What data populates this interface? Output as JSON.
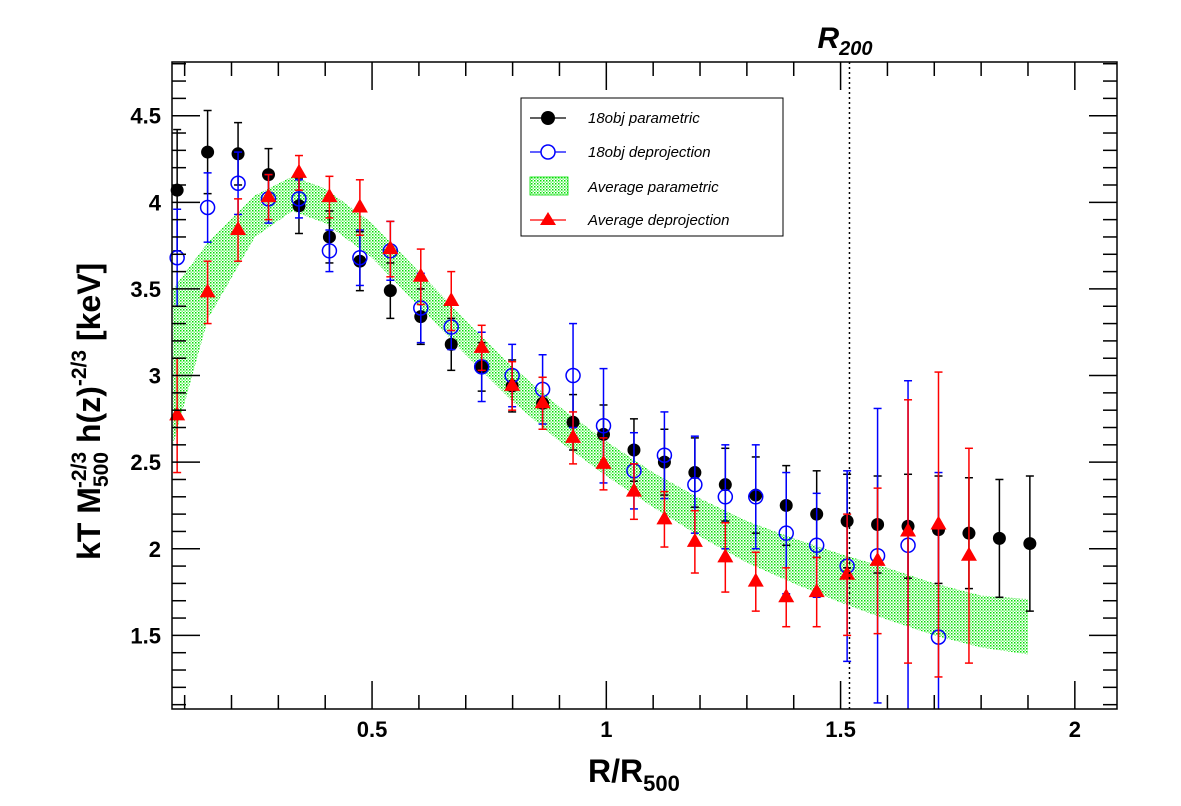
{
  "chart_data": {
    "type": "scatter",
    "title": "",
    "xlabel": {
      "main": "R/R",
      "sub": "500"
    },
    "ylabel": {
      "part1": "kT M",
      "sub1": "500",
      "sup1": "-2/3",
      "part2": " h(z)",
      "sup2": "-2/3",
      "part3": " [keV]"
    },
    "xlim": [
      0.073,
      2.09
    ],
    "ylim": [
      1.075,
      4.81
    ],
    "x_ticks": [
      "0.5",
      "1",
      "1.5",
      "2"
    ],
    "x_tick_values": [
      0.5,
      1,
      1.5,
      2
    ],
    "y_ticks": [
      "1.5",
      "2",
      "2.5",
      "3",
      "3.5",
      "4",
      "4.5"
    ],
    "y_tick_values": [
      1.5,
      2,
      2.5,
      3,
      3.5,
      4,
      4.5
    ],
    "grid": false,
    "legend_position": "top-center",
    "annotation": {
      "label": "R",
      "sub": "200",
      "x": 1.519
    },
    "colors": {
      "parametric": "#000000",
      "deprojection": "#0000ff",
      "band": "#00ee00",
      "avg_deprojection": "#ff0000"
    },
    "series": [
      {
        "name": "18obj parametric",
        "marker": "filled-circle",
        "x": [
          0.084,
          0.149,
          0.214,
          0.279,
          0.344,
          0.409,
          0.474,
          0.539,
          0.604,
          0.669,
          0.734,
          0.799,
          0.864,
          0.929,
          0.994,
          1.059,
          1.124,
          1.189,
          1.254,
          1.319,
          1.384,
          1.449,
          1.514,
          1.579,
          1.644,
          1.709,
          1.774,
          1.839,
          1.904
        ],
        "y": [
          4.07,
          4.29,
          4.28,
          4.16,
          3.98,
          3.8,
          3.66,
          3.49,
          3.34,
          3.18,
          3.05,
          2.94,
          2.84,
          2.73,
          2.66,
          2.57,
          2.5,
          2.44,
          2.37,
          2.31,
          2.25,
          2.2,
          2.16,
          2.14,
          2.13,
          2.11,
          2.09,
          2.06,
          2.03
        ],
        "yerr": [
          0.35,
          0.24,
          0.18,
          0.15,
          0.16,
          0.15,
          0.17,
          0.16,
          0.16,
          0.15,
          0.14,
          0.15,
          0.15,
          0.16,
          0.17,
          0.18,
          0.19,
          0.2,
          0.21,
          0.22,
          0.23,
          0.25,
          0.27,
          0.28,
          0.3,
          0.31,
          0.32,
          0.34,
          0.39
        ]
      },
      {
        "name": "18obj deprojection",
        "marker": "open-circle",
        "x": [
          0.084,
          0.149,
          0.214,
          0.279,
          0.344,
          0.409,
          0.474,
          0.539,
          0.604,
          0.669,
          0.734,
          0.799,
          0.864,
          0.929,
          0.994,
          1.059,
          1.124,
          1.189,
          1.254,
          1.319,
          1.384,
          1.449,
          1.514,
          1.579,
          1.644,
          1.709
        ],
        "y": [
          3.68,
          3.97,
          4.11,
          4.02,
          4.02,
          3.72,
          3.68,
          3.72,
          3.39,
          3.28,
          3.05,
          3.0,
          2.92,
          3.0,
          2.71,
          2.45,
          2.54,
          2.37,
          2.3,
          2.3,
          2.09,
          2.02,
          1.9,
          1.96,
          2.02,
          1.49
        ],
        "yerr": [
          0.28,
          0.2,
          0.18,
          0.14,
          0.11,
          0.12,
          0.16,
          0.17,
          0.2,
          0.13,
          0.2,
          0.18,
          0.2,
          0.3,
          0.33,
          0.22,
          0.25,
          0.28,
          0.3,
          0.3,
          0.35,
          0.3,
          0.55,
          0.85,
          0.95,
          0.95
        ]
      },
      {
        "name": "Average parametric",
        "marker": "band",
        "x": [
          0.075,
          0.15,
          0.25,
          0.33,
          0.4,
          0.5,
          0.6,
          0.7,
          0.8,
          0.9,
          1.0,
          1.1,
          1.2,
          1.3,
          1.4,
          1.5,
          1.6,
          1.7,
          1.8,
          1.9
        ],
        "y": [
          3.05,
          3.55,
          3.92,
          4.05,
          3.98,
          3.78,
          3.5,
          3.22,
          2.95,
          2.72,
          2.52,
          2.34,
          2.18,
          2.04,
          1.93,
          1.83,
          1.74,
          1.65,
          1.58,
          1.55
        ],
        "yerr": [
          0.45,
          0.22,
          0.12,
          0.1,
          0.1,
          0.1,
          0.1,
          0.1,
          0.1,
          0.1,
          0.1,
          0.1,
          0.11,
          0.12,
          0.13,
          0.14,
          0.15,
          0.15,
          0.15,
          0.16
        ]
      },
      {
        "name": "Average deprojection",
        "marker": "filled-triangle",
        "x": [
          0.084,
          0.149,
          0.214,
          0.279,
          0.344,
          0.409,
          0.474,
          0.539,
          0.604,
          0.669,
          0.734,
          0.799,
          0.864,
          0.929,
          0.994,
          1.059,
          1.124,
          1.189,
          1.254,
          1.319,
          1.384,
          1.449,
          1.514,
          1.579,
          1.644,
          1.709,
          1.774
        ],
        "y": [
          2.77,
          3.48,
          3.84,
          4.03,
          4.17,
          4.03,
          3.97,
          3.73,
          3.57,
          3.43,
          3.16,
          2.94,
          2.84,
          2.64,
          2.49,
          2.33,
          2.17,
          2.04,
          1.95,
          1.81,
          1.72,
          1.75,
          1.85,
          1.93,
          2.1,
          2.14,
          1.96
        ],
        "yerr": [
          0.33,
          0.18,
          0.18,
          0.13,
          0.1,
          0.12,
          0.16,
          0.16,
          0.16,
          0.17,
          0.13,
          0.14,
          0.15,
          0.15,
          0.15,
          0.16,
          0.16,
          0.18,
          0.2,
          0.17,
          0.17,
          0.2,
          0.35,
          0.42,
          0.76,
          0.88,
          0.62
        ]
      }
    ]
  }
}
